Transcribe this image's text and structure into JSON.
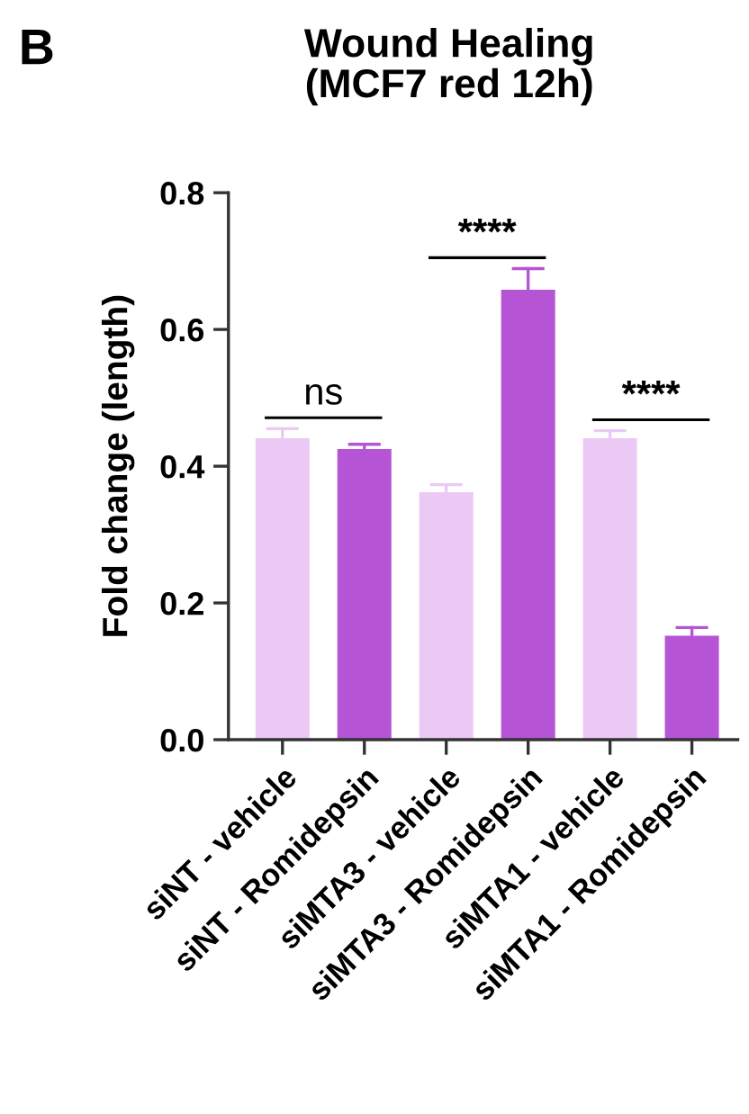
{
  "chart_data": {
    "type": "bar",
    "title": "Wound Healing\n(MCF7 red 12h)",
    "ylabel": "Fold change (length)",
    "categories": [
      "siNT - vehicle",
      "siNT - Romidepsin",
      "siMTA3 - vehicle",
      "siMTA3 - Romidepsin",
      "siMTA1 - vehicle",
      "siMTA1 - Romidepsin"
    ],
    "values": [
      0.441,
      0.425,
      0.362,
      0.658,
      0.441,
      0.152
    ],
    "errors": [
      [
        0.441,
        0.455
      ],
      [
        0.425,
        0.432
      ],
      [
        0.362,
        0.373
      ],
      [
        0.658,
        0.689
      ],
      [
        0.441,
        0.452
      ],
      [
        0.152,
        0.164
      ]
    ],
    "colors": [
      "#ecc8f5",
      "#b554d4",
      "#ecc8f5",
      "#b554d4",
      "#ecc8f5",
      "#b554d4"
    ],
    "ylim": [
      0,
      0.8
    ],
    "yticks": [
      {
        "value": 0,
        "label": "0.0"
      },
      0.2,
      0.4,
      0.6,
      0.8
    ],
    "grid": false,
    "annotations": [
      "B",
      "ns",
      "****",
      "****"
    ]
  }
}
